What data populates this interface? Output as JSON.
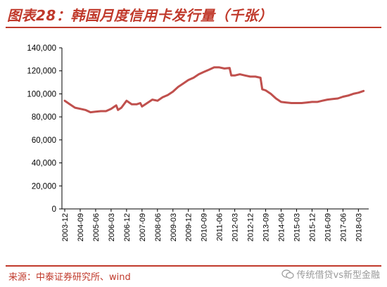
{
  "title": "图表28：韩国月度信用卡发行量（千张）",
  "source": "来源：中泰证券研究所、wind",
  "watermark": "传统借贷vs新型金融",
  "chart_data": {
    "type": "line",
    "title": "图表28：韩国月度信用卡发行量（千张）",
    "xlabel": "",
    "ylabel": "",
    "ylim": [
      0,
      140000
    ],
    "yticks": [
      "0",
      "20,000",
      "40,000",
      "60,000",
      "80,000",
      "100,000",
      "120,000",
      "140,000"
    ],
    "x_tick_labels": [
      "2003-12",
      "2004-09",
      "2005-06",
      "2006-03",
      "2006-12",
      "2007-09",
      "2008-06",
      "2009-03",
      "2009-12",
      "2010-09",
      "2011-06",
      "2012-03",
      "2012-12",
      "2013-09",
      "2014-06",
      "2015-03",
      "2015-12",
      "2016-09",
      "2017-06",
      "2018-03"
    ],
    "grid": false,
    "legend": "none",
    "color": "#c0504d",
    "series": [
      {
        "x": [
          "2003-12",
          "2004-03",
          "2004-06",
          "2004-09",
          "2004-12",
          "2005-03",
          "2005-06",
          "2005-09",
          "2005-12",
          "2006-03",
          "2006-06",
          "2006-07",
          "2006-09",
          "2006-12",
          "2007-01",
          "2007-03",
          "2007-06",
          "2007-08",
          "2007-09",
          "2007-12",
          "2008-03",
          "2008-06",
          "2008-09",
          "2008-12",
          "2009-03",
          "2009-06",
          "2009-09",
          "2009-12",
          "2010-03",
          "2010-06",
          "2010-09",
          "2010-12",
          "2011-03",
          "2011-06",
          "2011-09",
          "2011-12",
          "2012-01",
          "2012-03",
          "2012-06",
          "2012-09",
          "2012-12",
          "2013-03",
          "2013-06",
          "2013-07",
          "2013-09",
          "2013-12",
          "2014-03",
          "2014-06",
          "2014-09",
          "2014-12",
          "2015-03",
          "2015-06",
          "2015-09",
          "2015-12",
          "2016-03",
          "2016-06",
          "2016-09",
          "2016-12",
          "2017-03",
          "2017-06",
          "2017-09",
          "2017-12",
          "2018-03",
          "2018-06"
        ],
        "values": [
          94000,
          91000,
          88000,
          87000,
          86000,
          84000,
          84500,
          85000,
          85000,
          87000,
          90000,
          86000,
          88000,
          94000,
          93000,
          91000,
          91000,
          92000,
          89000,
          92000,
          95000,
          94000,
          97000,
          99000,
          102000,
          106000,
          109000,
          112000,
          114000,
          117000,
          119000,
          121000,
          123000,
          123000,
          122000,
          122500,
          116000,
          116000,
          117000,
          116000,
          115000,
          115000,
          114000,
          104000,
          103000,
          100000,
          96000,
          93000,
          92500,
          92000,
          92000,
          92000,
          92500,
          93000,
          93000,
          94000,
          95000,
          95500,
          96000,
          97500,
          98500,
          100000,
          101000,
          102500
        ]
      }
    ]
  }
}
